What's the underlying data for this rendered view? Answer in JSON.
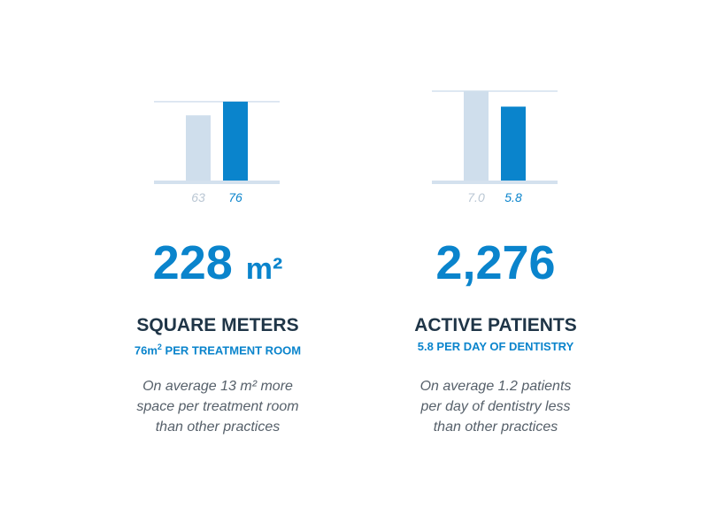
{
  "chart_data": [
    {
      "type": "bar",
      "categories": [
        "63",
        "76"
      ],
      "values": [
        63,
        76
      ],
      "ylim": [
        0,
        86
      ],
      "reference_value": 76,
      "colors": [
        "#cfdeec",
        "#0a84cc"
      ],
      "label_colors": [
        "#b9c6d3",
        "#0a84cc"
      ]
    },
    {
      "type": "bar",
      "categories": [
        "7.0",
        "5.8"
      ],
      "values": [
        7.0,
        5.8
      ],
      "ylim": [
        0,
        7.0
      ],
      "reference_value": 7.0,
      "colors": [
        "#cfdeec",
        "#0a84cc"
      ],
      "label_colors": [
        "#b9c6d3",
        "#0a84cc"
      ]
    }
  ],
  "stats": [
    {
      "number": "228",
      "unit": "m²",
      "title": "SQUARE METERS",
      "subtitle_value": "76m",
      "subtitle_sup": "2",
      "subtitle_rest": " PER TREATMENT ROOM",
      "desc_lines": [
        "On average 13 m² more",
        "space per treatment room",
        "than other practices"
      ]
    },
    {
      "number": "2,276",
      "unit": "",
      "title": "ACTIVE PATIENTS",
      "subtitle_value": "5.8 PER DAY OF DENTISTRY",
      "subtitle_sup": "",
      "subtitle_rest": "",
      "desc_lines": [
        "On average 1.2 patients",
        "per day of dentistry less",
        "than other practices"
      ]
    }
  ],
  "colors": {
    "accent": "#0a84cc",
    "light_bar": "#cfdeec",
    "axis": "#d4e1ee",
    "title": "#1f3547",
    "desc": "#56606a"
  }
}
